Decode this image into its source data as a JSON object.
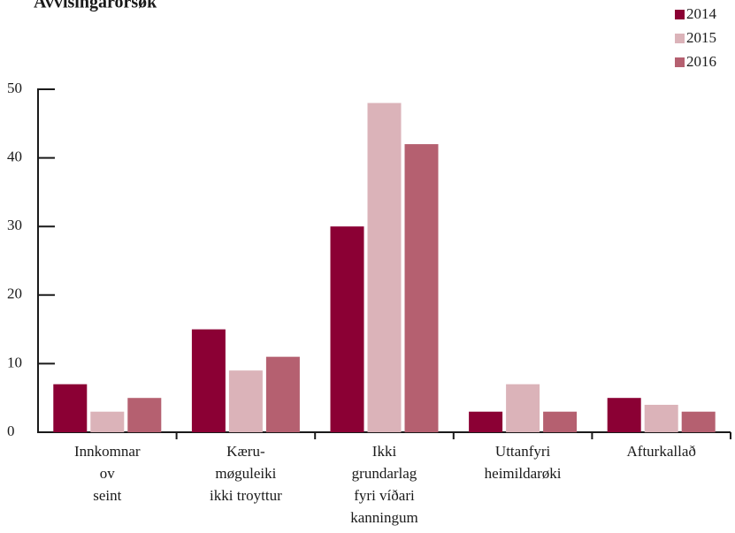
{
  "chart_data": {
    "type": "bar",
    "title": "Avvisingarorsøk",
    "categories": [
      "Innkomnar\nov\nseint",
      "Kæru-\nmøguleiki\nikki troyttur",
      "Ikki\ngrundarlag\nfyri víðari\nkanningum",
      "Uttanfyri\nheimildarøki",
      "Afturkallað"
    ],
    "series": [
      {
        "name": "2014",
        "color": "#8b0034",
        "values": [
          7,
          15,
          30,
          3,
          5
        ]
      },
      {
        "name": "2015",
        "color": "#dbb3b9",
        "values": [
          3,
          9,
          48,
          7,
          4
        ]
      },
      {
        "name": "2016",
        "color": "#b56070",
        "values": [
          5,
          11,
          42,
          3,
          3
        ]
      }
    ],
    "ylim": [
      0,
      50
    ],
    "yticks": [
      0,
      10,
      20,
      30,
      40,
      50
    ],
    "legend": "top-right"
  }
}
